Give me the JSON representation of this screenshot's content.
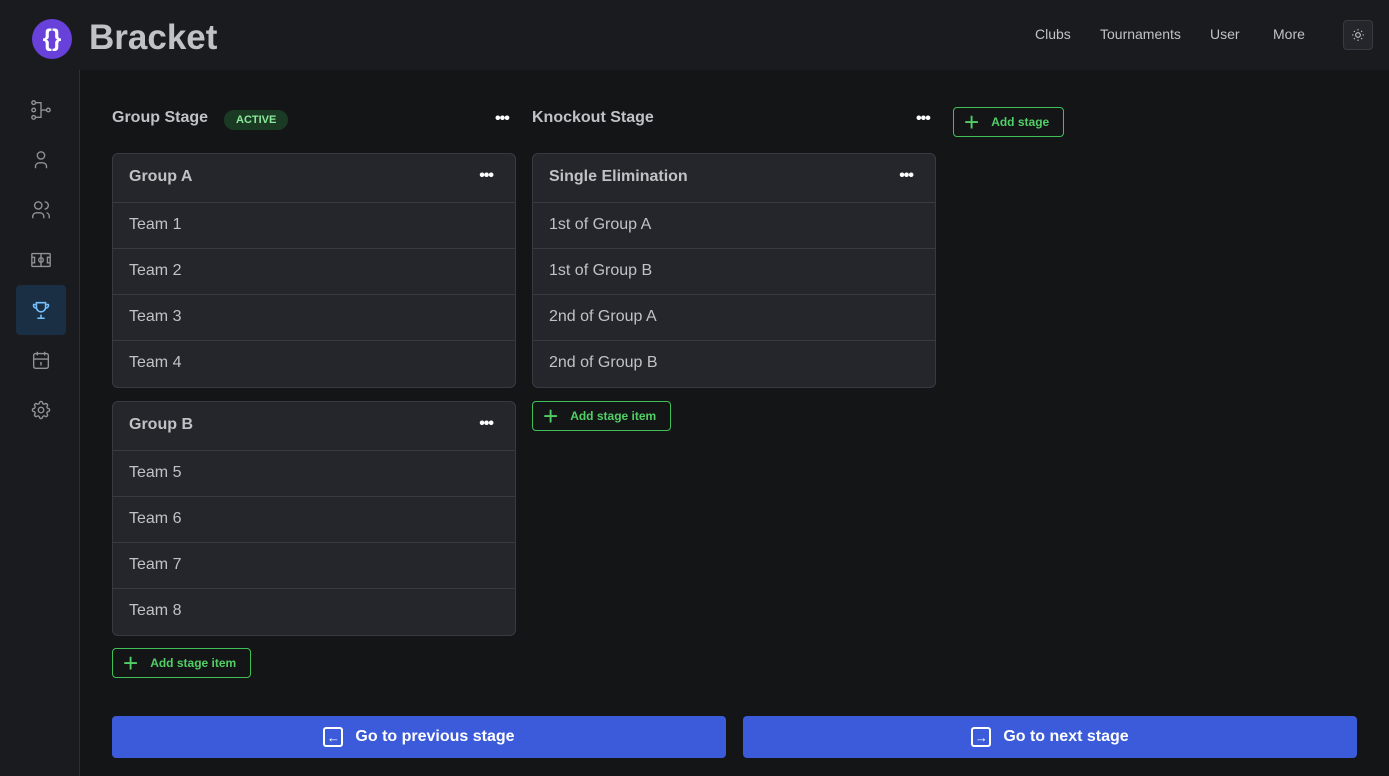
{
  "app": {
    "name": "Bracket",
    "logo_text": "{}"
  },
  "nav": [
    "Clubs",
    "Tournaments",
    "User",
    "More"
  ],
  "sidebar": [
    "bracket-icon",
    "player-icon",
    "teams-icon",
    "court-icon",
    "trophy-icon",
    "calendar-icon",
    "settings-icon"
  ],
  "stages": [
    {
      "title": "Group Stage",
      "badge": "ACTIVE",
      "items": [
        {
          "title": "Group A",
          "rows": [
            "Team 1",
            "Team 2",
            "Team 3",
            "Team 4"
          ]
        },
        {
          "title": "Group B",
          "rows": [
            "Team 5",
            "Team 6",
            "Team 7",
            "Team 8"
          ]
        }
      ]
    },
    {
      "title": "Knockout Stage",
      "items": [
        {
          "title": "Single Elimination",
          "rows": [
            "1st of Group A",
            "1st of Group B",
            "2nd of Group A",
            "2nd of Group B"
          ]
        }
      ]
    }
  ],
  "buttons": {
    "add_stage_item": "Add stage item",
    "add_stage": "Add stage",
    "prev": "Go to previous stage",
    "next": "Go to next stage",
    "dots": "•••"
  },
  "colors": {
    "accent": "#3b5bdb",
    "green": "#40c057",
    "brand": "#6741d9"
  }
}
